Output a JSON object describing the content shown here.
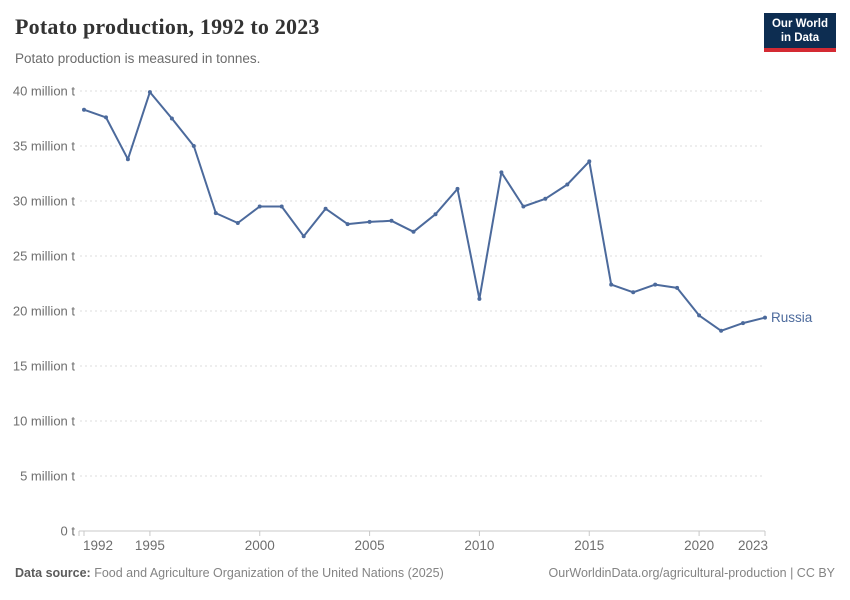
{
  "header": {
    "title": "Potato production, 1992 to 2023",
    "subtitle": "Potato production is measured in tonnes."
  },
  "logo": {
    "line1": "Our World",
    "line2": "in Data"
  },
  "chart_data": {
    "type": "line",
    "title": "Potato production, 1992 to 2023",
    "subtitle": "Potato production is measured in tonnes.",
    "unit": "tonnes",
    "x": [
      1992,
      1993,
      1994,
      1995,
      1996,
      1997,
      1998,
      1999,
      2000,
      2001,
      2002,
      2003,
      2004,
      2005,
      2006,
      2007,
      2008,
      2009,
      2010,
      2011,
      2012,
      2013,
      2014,
      2015,
      2016,
      2017,
      2018,
      2019,
      2020,
      2021,
      2022,
      2023
    ],
    "series": [
      {
        "name": "Russia",
        "color": "#4C6A9C",
        "values": [
          38.3,
          37.6,
          33.8,
          39.9,
          37.5,
          35.0,
          28.9,
          28.0,
          29.5,
          29.5,
          26.8,
          29.3,
          27.9,
          28.1,
          28.2,
          27.2,
          28.8,
          31.1,
          21.1,
          32.6,
          29.5,
          30.2,
          31.5,
          33.6,
          22.4,
          21.7,
          22.4,
          22.1,
          19.6,
          18.2,
          18.9,
          19.4
        ]
      }
    ],
    "values_unit_scale": "million tonnes",
    "xlim": [
      1992,
      2023
    ],
    "ylim": [
      0,
      40
    ],
    "xticks": [
      1992,
      1995,
      2000,
      2005,
      2010,
      2015,
      2020,
      2023
    ],
    "yticks": [
      0,
      5,
      10,
      15,
      20,
      25,
      30,
      35,
      40
    ],
    "ytick_labels": [
      "0 t",
      "5 million t",
      "10 million t",
      "15 million t",
      "20 million t",
      "25 million t",
      "30 million t",
      "35 million t",
      "40 million t"
    ],
    "grid": "horizontal-dashed",
    "legend_position": "line-end-label"
  },
  "footer": {
    "source_label": "Data source:",
    "source": "Food and Agriculture Organization of the United Nations (2025)",
    "credit": "OurWorldinData.org/agricultural-production | CC BY"
  },
  "colors": {
    "line": "#4C6A9C",
    "grid": "#dddddd",
    "axis": "#c8c8c8",
    "tick_text": "#6e6e6e",
    "logo_bg": "#0d2d51",
    "logo_accent": "#d42a33"
  }
}
